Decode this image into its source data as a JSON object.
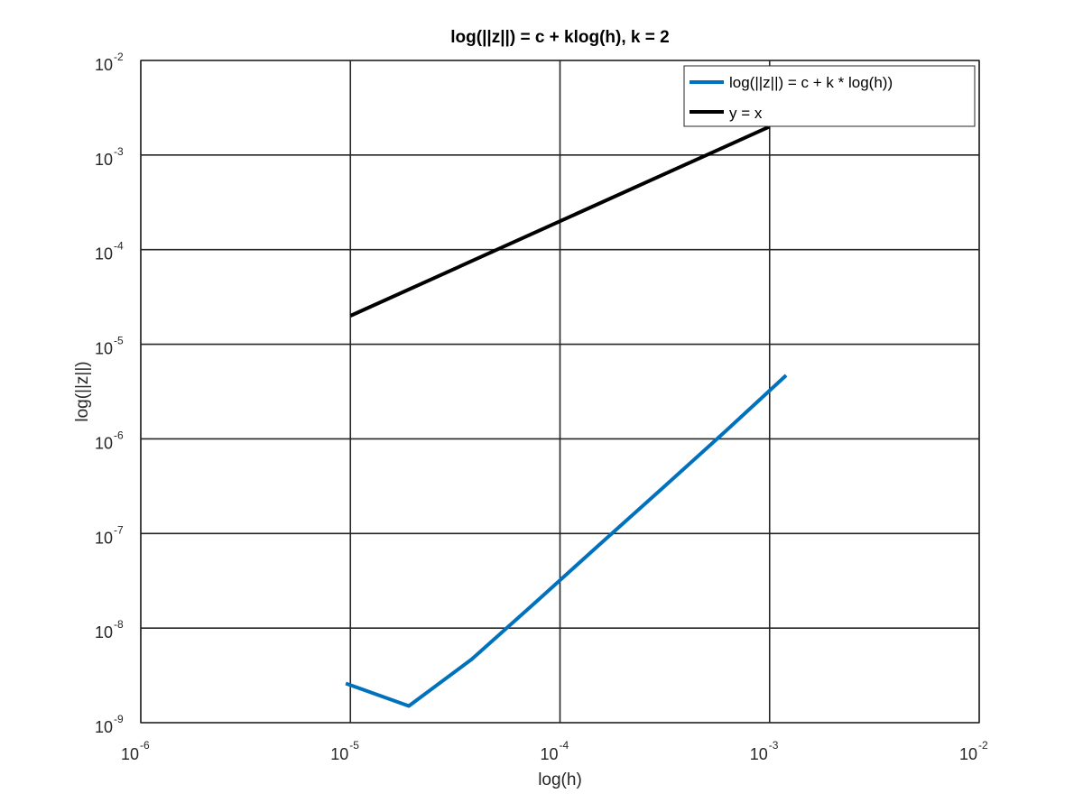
{
  "chart_data": {
    "type": "line",
    "title": "log(||z||) = c + klog(h), k = 2",
    "xlabel": "log(h)",
    "ylabel": "log(||z||)",
    "xscale": "log",
    "yscale": "log",
    "xlim": [
      1e-06,
      0.01
    ],
    "ylim": [
      1e-09,
      0.01
    ],
    "grid": true,
    "legend_position": "top-right",
    "xticks": [
      {
        "base": "10",
        "exp": "-6",
        "value": 1e-06
      },
      {
        "base": "10",
        "exp": "-5",
        "value": 1e-05
      },
      {
        "base": "10",
        "exp": "-4",
        "value": 0.0001
      },
      {
        "base": "10",
        "exp": "-3",
        "value": 0.001
      },
      {
        "base": "10",
        "exp": "-2",
        "value": 0.01
      }
    ],
    "yticks": [
      {
        "base": "10",
        "exp": "-9",
        "value": 1e-09
      },
      {
        "base": "10",
        "exp": "-8",
        "value": 1e-08
      },
      {
        "base": "10",
        "exp": "-7",
        "value": 1e-07
      },
      {
        "base": "10",
        "exp": "-6",
        "value": 1e-06
      },
      {
        "base": "10",
        "exp": "-5",
        "value": 1e-05
      },
      {
        "base": "10",
        "exp": "-4",
        "value": 0.0001
      },
      {
        "base": "10",
        "exp": "-3",
        "value": 0.001
      },
      {
        "base": "10",
        "exp": "-2",
        "value": 0.01
      }
    ],
    "series": [
      {
        "name": "log(||z||) = c + k * log(h))",
        "color": "#0072bd",
        "x": [
          9.5e-06,
          1.9e-05,
          3.8e-05,
          7.6e-05,
          0.000152,
          0.000305,
          0.00061,
          0.0012
        ],
        "y": [
          2.6e-09,
          1.5e-09,
          4.7e-09,
          1.85e-08,
          7.4e-08,
          2.95e-07,
          1.18e-06,
          4.7e-06
        ]
      },
      {
        "name": "y = x",
        "color": "#000000",
        "x": [
          1e-05,
          0.001
        ],
        "y": [
          2e-05,
          0.002
        ]
      }
    ]
  }
}
